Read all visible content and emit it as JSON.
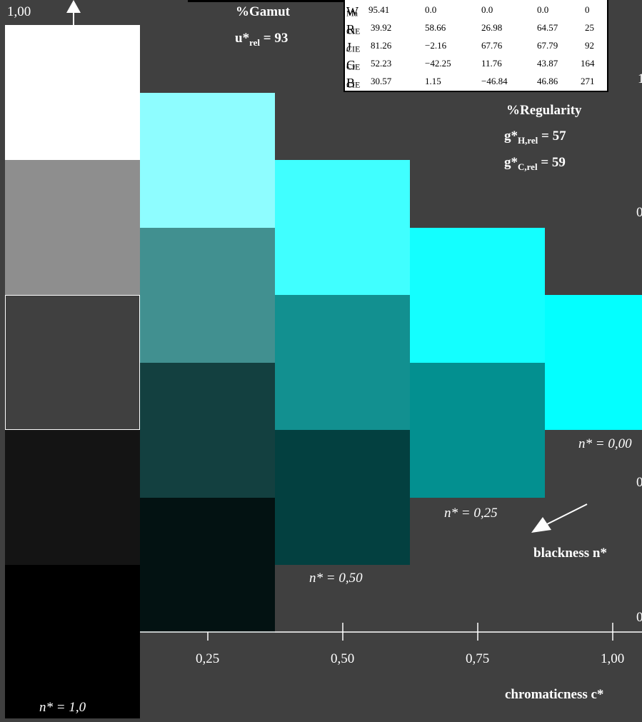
{
  "top_value": "1,00",
  "gamut": {
    "title": "%Gamut",
    "metric_symbol": "u*",
    "metric_sub": "rel",
    "metric_value": "= 93"
  },
  "regularity": {
    "title": "%Regularity",
    "lines": [
      {
        "symbol": "g*",
        "sub": "H,rel",
        "value": "= 57"
      },
      {
        "symbol": "g*",
        "sub": "C,rel",
        "value": "= 59"
      }
    ]
  },
  "table": {
    "rows": [
      {
        "name": "W",
        "sub": "Ma",
        "c1": "95.41",
        "c2": "0.0",
        "c3": "0.0",
        "c4": "0.0",
        "c5": "0"
      },
      {
        "name": "R",
        "sub": "CIE",
        "c1": "39.92",
        "c2": "58.66",
        "c3": "26.98",
        "c4": "64.57",
        "c5": "25"
      },
      {
        "name": "J",
        "sub": "CIE",
        "c1": "81.26",
        "c2": "−2.16",
        "c3": "67.76",
        "c4": "67.79",
        "c5": "92"
      },
      {
        "name": "G",
        "sub": "CIE",
        "c1": "52.23",
        "c2": "−42.25",
        "c3": "11.76",
        "c4": "43.87",
        "c5": "164"
      },
      {
        "name": "B",
        "sub": "CIE",
        "c1": "30.57",
        "c2": "1.15",
        "c3": "−46.84",
        "c4": "46.86",
        "c5": "271"
      }
    ]
  },
  "x_ticks": [
    "0,25",
    "0,50",
    "0,75",
    "1,00"
  ],
  "x_axis_label": "chromaticness c*",
  "blackness_label": "blackness n*",
  "n_labels": [
    "n* = 0,00",
    "n* = 0,25",
    "n* = 0,50",
    "n* = 1,0"
  ],
  "right_partial_labels": [
    "1",
    "0",
    "0",
    "0"
  ],
  "columns": [
    [
      "#ffffff",
      "#8e8e8e",
      "#404040",
      "#141414",
      "#000000"
    ],
    [
      "#8efdff",
      "#419090",
      "#134040",
      "#031212"
    ],
    [
      "#40ffff",
      "#129090",
      "#034040"
    ],
    [
      "#13ffff",
      "#039090"
    ],
    [
      "#03ffff"
    ]
  ]
}
